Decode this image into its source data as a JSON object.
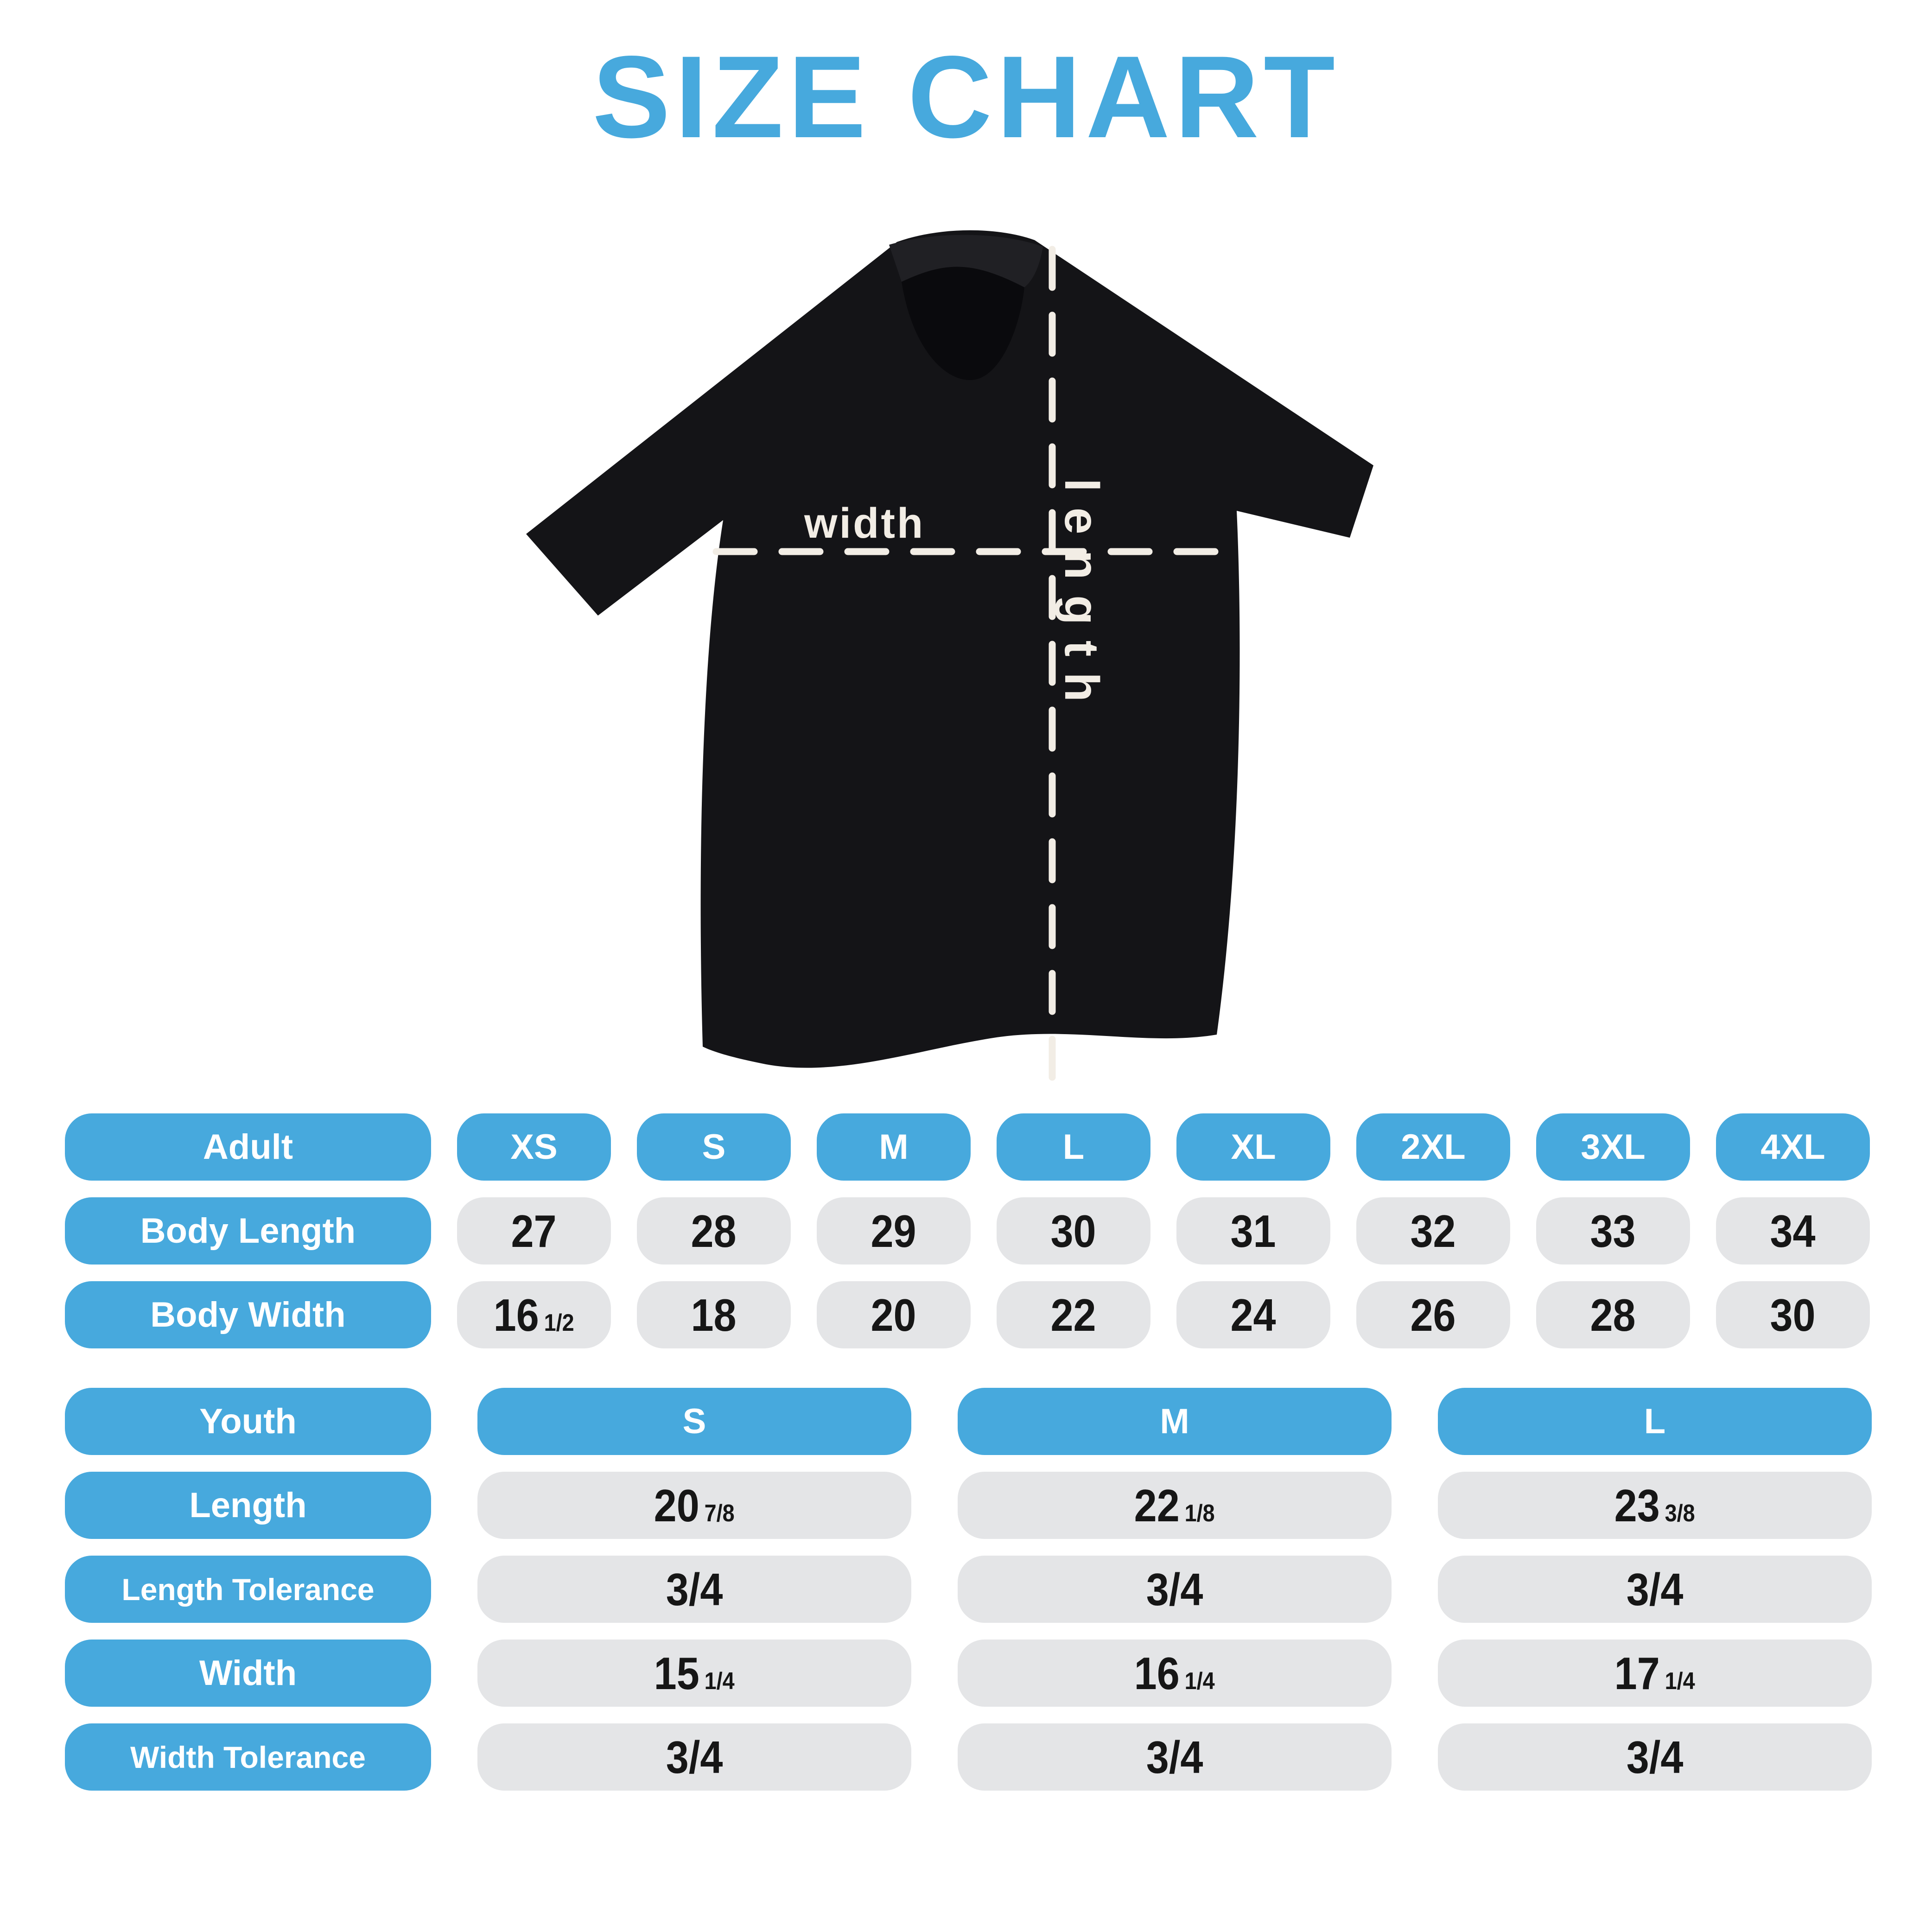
{
  "title": "SIZE CHART",
  "colors": {
    "accent_blue": "#47A9DD",
    "pill_gray": "#E4E5E7",
    "shirt_black": "#141417",
    "measure_line_cream": "#F2EDE5"
  },
  "shirt_diagram": {
    "length_label": "length",
    "width_label": "width"
  },
  "adult_table": {
    "header": [
      "Adult",
      "XS",
      "S",
      "M",
      "L",
      "XL",
      "2XL",
      "3XL",
      "4XL"
    ],
    "rows": [
      {
        "label": "Body Length",
        "values": [
          {
            "num": "27",
            "frac": ""
          },
          {
            "num": "28",
            "frac": ""
          },
          {
            "num": "29",
            "frac": ""
          },
          {
            "num": "30",
            "frac": ""
          },
          {
            "num": "31",
            "frac": ""
          },
          {
            "num": "32",
            "frac": ""
          },
          {
            "num": "33",
            "frac": ""
          },
          {
            "num": "34",
            "frac": ""
          }
        ]
      },
      {
        "label": "Body Width",
        "values": [
          {
            "num": "16",
            "frac": "1/2"
          },
          {
            "num": "18",
            "frac": ""
          },
          {
            "num": "20",
            "frac": ""
          },
          {
            "num": "22",
            "frac": ""
          },
          {
            "num": "24",
            "frac": ""
          },
          {
            "num": "26",
            "frac": ""
          },
          {
            "num": "28",
            "frac": ""
          },
          {
            "num": "30",
            "frac": ""
          }
        ]
      }
    ]
  },
  "youth_table": {
    "header": [
      "Youth",
      "S",
      "M",
      "L"
    ],
    "rows": [
      {
        "label": "Length",
        "values": [
          {
            "num": "20",
            "frac": "7/8"
          },
          {
            "num": "22",
            "frac": "1/8"
          },
          {
            "num": "23",
            "frac": "3/8"
          }
        ]
      },
      {
        "label": "Length Tolerance",
        "values": [
          {
            "num": "3/4",
            "frac": ""
          },
          {
            "num": "3/4",
            "frac": ""
          },
          {
            "num": "3/4",
            "frac": ""
          }
        ]
      },
      {
        "label": "Width",
        "values": [
          {
            "num": "15",
            "frac": "1/4"
          },
          {
            "num": "16",
            "frac": "1/4"
          },
          {
            "num": "17",
            "frac": "1/4"
          }
        ]
      },
      {
        "label": "Width Tolerance",
        "values": [
          {
            "num": "3/4",
            "frac": ""
          },
          {
            "num": "3/4",
            "frac": ""
          },
          {
            "num": "3/4",
            "frac": ""
          }
        ]
      }
    ]
  }
}
